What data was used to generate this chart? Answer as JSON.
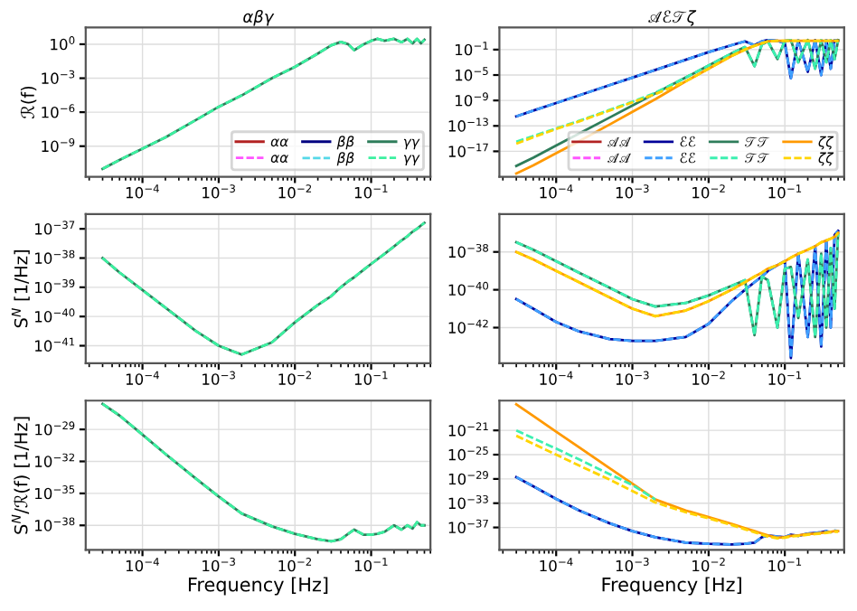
{
  "chart_data": [
    {
      "type": "line",
      "title": "αβγ",
      "ylabel": "ℛ(f)",
      "log": "xy",
      "grid": true,
      "legend": "bottom right",
      "x": [
        3e-05,
        5e-05,
        0.0001,
        0.0002,
        0.0005,
        0.001,
        0.002,
        0.005,
        0.01,
        0.02,
        0.03,
        0.04,
        0.05,
        0.06,
        0.08,
        0.1,
        0.12,
        0.15,
        0.2,
        0.25,
        0.3,
        0.35,
        0.4,
        0.45,
        0.5
      ],
      "xlim": [
        1.8e-05,
        0.6
      ],
      "xticks": [
        {
          "value": 0.0001,
          "label": "10$^{−4}$"
        },
        {
          "value": 0.001,
          "label": "10$^{−3}$"
        },
        {
          "value": 0.01,
          "label": "10$^{−2}$"
        },
        {
          "value": 0.1,
          "label": "10$^{−1}$"
        }
      ],
      "ylim": [
        2e-12,
        30
      ],
      "yticks": [
        {
          "value": 1e-09,
          "label": "10$^{−9}$"
        },
        {
          "value": 1e-06,
          "label": "10$^{−6}$"
        },
        {
          "value": 0.001,
          "label": "10$^{−3}$"
        },
        {
          "value": 1,
          "label": "10$^{0}$"
        }
      ],
      "series": [
        {
          "name": "αα",
          "color": "#b22222",
          "line_style": "solid",
          "values": [
            null,
            null,
            null,
            null,
            null,
            null,
            null,
            null,
            null,
            null,
            null,
            null,
            null,
            null,
            null,
            null,
            null,
            null,
            null,
            null,
            null,
            null,
            null,
            null,
            null
          ]
        },
        {
          "name": "αα",
          "color": "#ff55ff",
          "line_style": "dashed",
          "values": [
            null,
            null,
            null,
            null,
            null,
            null,
            null,
            null,
            null,
            null,
            null,
            null,
            null,
            null,
            null,
            null,
            null,
            null,
            null,
            null,
            null,
            null,
            null,
            null,
            null
          ]
        },
        {
          "name": "ββ",
          "color": "#000080",
          "line_style": "solid",
          "values": [
            null,
            null,
            null,
            null,
            null,
            null,
            null,
            null,
            null,
            null,
            null,
            null,
            null,
            null,
            null,
            null,
            null,
            null,
            null,
            null,
            null,
            null,
            null,
            null,
            null
          ]
        },
        {
          "name": "ββ",
          "color": "#55d8e8",
          "line_style": "dashed",
          "values": [
            null,
            null,
            null,
            null,
            null,
            null,
            null,
            null,
            null,
            null,
            null,
            null,
            null,
            null,
            null,
            null,
            null,
            null,
            null,
            null,
            null,
            null,
            null,
            null,
            null
          ]
        },
        {
          "name": "γγ",
          "color": "#2e7d5b",
          "line_style": "solid",
          "values": [
            1e-11,
            6e-11,
            6e-10,
            6e-09,
            2e-07,
            3e-06,
            3e-05,
            0.001,
            0.01,
            0.15,
            0.8,
            1.6,
            1,
            0.3,
            1,
            2,
            3,
            2,
            3,
            1.5,
            3,
            1.2,
            3,
            1.2,
            2.5
          ]
        },
        {
          "name": "γγ",
          "color": "#3cf0a0",
          "line_style": "dashed",
          "values": [
            1e-11,
            6e-11,
            6e-10,
            6e-09,
            2e-07,
            3e-06,
            3e-05,
            0.001,
            0.01,
            0.15,
            0.8,
            1.6,
            1,
            0.3,
            1,
            2,
            3,
            2,
            3,
            1.5,
            3,
            1.2,
            3,
            1.2,
            2.5
          ]
        }
      ]
    },
    {
      "type": "line",
      "title": "𝒜ℰ𝒯ζ",
      "log": "xy",
      "grid": true,
      "legend": "bottom right",
      "x": [
        3e-05,
        5e-05,
        0.0001,
        0.0002,
        0.0005,
        0.001,
        0.002,
        0.005,
        0.01,
        0.02,
        0.03,
        0.04,
        0.05,
        0.06,
        0.08,
        0.1,
        0.12,
        0.15,
        0.2,
        0.25,
        0.3,
        0.35,
        0.4,
        0.45,
        0.5
      ],
      "xlim": [
        1.8e-05,
        0.6
      ],
      "xticks": [
        {
          "value": 0.0001,
          "label": "10$^{−4}$"
        },
        {
          "value": 0.001,
          "label": "10$^{−3}$"
        },
        {
          "value": 0.01,
          "label": "10$^{−2}$"
        },
        {
          "value": 0.1,
          "label": "10$^{−1}$"
        }
      ],
      "ylim": [
        1e-21,
        300
      ],
      "yticks": [
        {
          "value": 1e-17,
          "label": "10$^{−17}$"
        },
        {
          "value": 1e-13,
          "label": "10$^{−13}$"
        },
        {
          "value": 1e-09,
          "label": "10$^{−9}$"
        },
        {
          "value": 1e-05,
          "label": "10$^{−5}$"
        },
        {
          "value": 0.1,
          "label": "10$^{−1}$"
        }
      ],
      "series": [
        {
          "name": "𝒜𝒜",
          "color": "#b22222",
          "line_style": "solid",
          "values": [
            null,
            null,
            null,
            null,
            null,
            null,
            null,
            null,
            null,
            null,
            null,
            null,
            null,
            null,
            null,
            null,
            null,
            null,
            null,
            null,
            null,
            null,
            null,
            null,
            null
          ]
        },
        {
          "name": "𝒜𝒜",
          "color": "#ff55ff",
          "line_style": "dashed",
          "values": [
            null,
            null,
            null,
            null,
            null,
            null,
            null,
            null,
            null,
            null,
            null,
            null,
            null,
            null,
            null,
            null,
            null,
            null,
            null,
            null,
            null,
            null,
            null,
            null,
            null
          ]
        },
        {
          "name": "ℰℰ",
          "color": "#000099",
          "line_style": "solid",
          "values": [
            3.2e-12,
            2.5e-11,
            4e-10,
            6.3e-09,
            2.5e-07,
            4e-06,
            6.3e-05,
            0.0025,
            0.04,
            0.5,
            2,
            0.5,
            2,
            3.2,
            2.5,
            1,
            3.2e-06,
            3.2,
            3.2e-05,
            3.2,
            1e-05,
            3.2,
            0.0001,
            3.2,
            2.5
          ]
        },
        {
          "name": "ℰℰ",
          "color": "#3fa0ff",
          "line_style": "dashed",
          "values": [
            3.2e-12,
            2.5e-11,
            4e-10,
            6.3e-09,
            2.5e-07,
            4e-06,
            6.3e-05,
            0.0025,
            0.04,
            0.5,
            2,
            0.5,
            2,
            3.2,
            2.5,
            1,
            3.2e-06,
            3.2,
            3.2e-05,
            3.2,
            1e-05,
            3.2,
            0.0001,
            3.2,
            2.5
          ]
        },
        {
          "name": "𝒯𝒯",
          "color": "#2e7d5b",
          "line_style": "solid",
          "values": [
            5e-20,
            1e-18,
            8e-17,
            6.3e-15,
            2e-12,
            1.6e-10,
            1.3e-08,
            4e-06,
            0.00032,
            0.025,
            0.25,
            0.00025,
            0.63,
            2,
            0.0032,
            2.5,
            3.2,
            0.001,
            3.2,
            0.0001,
            3.2,
            0.001,
            3.2,
            0.0032,
            3.2
          ]
        },
        {
          "name": "𝒯𝒯",
          "color": "#3cf0b0",
          "line_style": "dashed",
          "values": [
            3.2e-16,
            2.5e-15,
            4e-14,
            6.3e-13,
            3.2e-11,
            6.3e-10,
            1.6e-08,
            4e-06,
            0.00032,
            0.025,
            0.25,
            0.00025,
            0.63,
            2,
            0.0032,
            2.5,
            3.2,
            0.001,
            3.2,
            0.0001,
            3.2,
            0.001,
            3.2,
            0.0032,
            3.2
          ]
        },
        {
          "name": "ζζ",
          "color": "#ff9900",
          "line_style": "solid",
          "values": [
            3.2e-21,
            6.3e-20,
            5e-18,
            4e-16,
            1.6e-13,
            1.6e-11,
            1.6e-09,
            1e-06,
            0.0001,
            0.01,
            0.1,
            0.4,
            1,
            2,
            2.5,
            2.5,
            2.5,
            2.5,
            2.5,
            2.5,
            2.5,
            2.5,
            2.5,
            2.5,
            2.5
          ]
        },
        {
          "name": "ζζ",
          "color": "#ffd400",
          "line_style": "dashed",
          "values": [
            1.6e-16,
            1.6e-15,
            3.2e-14,
            5e-13,
            2.5e-11,
            5e-10,
            1e-08,
            1e-06,
            0.0001,
            0.01,
            0.1,
            0.4,
            1,
            2,
            2.5,
            2.5,
            2.5,
            2.5,
            2.5,
            2.5,
            2.5,
            2.5,
            2.5,
            2.5,
            2.5
          ]
        }
      ]
    },
    {
      "type": "line",
      "ylabel": "S$^{N}$ [1/Hz]",
      "log": "xy",
      "grid": true,
      "x": [
        3e-05,
        5e-05,
        0.0001,
        0.0002,
        0.0005,
        0.001,
        0.002,
        0.005,
        0.01,
        0.02,
        0.03,
        0.04,
        0.05,
        0.06,
        0.08,
        0.1,
        0.12,
        0.15,
        0.2,
        0.25,
        0.3,
        0.35,
        0.4,
        0.45,
        0.5
      ],
      "xlim": [
        1.8e-05,
        0.6
      ],
      "xticks": [
        {
          "value": 0.0001,
          "label": "10$^{−4}$"
        },
        {
          "value": 0.001,
          "label": "10$^{−3}$"
        },
        {
          "value": 0.01,
          "label": "10$^{−2}$"
        },
        {
          "value": 0.1,
          "label": "10$^{−1}$"
        }
      ],
      "ylim": [
        2.5e-42,
        3.2e-37
      ],
      "yticks": [
        {
          "value": 1e-41,
          "label": "10$^{−41}$"
        },
        {
          "value": 1e-40,
          "label": "10$^{−40}$"
        },
        {
          "value": 1e-39,
          "label": "10$^{−39}$"
        },
        {
          "value": 1e-38,
          "label": "10$^{−38}$"
        },
        {
          "value": 1e-37,
          "label": "10$^{−37}$"
        }
      ],
      "series": [
        {
          "color": "#2e7d5b",
          "line_style": "solid",
          "values": [
            1e-38,
            3.2e-39,
            8e-40,
            2e-40,
            3.2e-41,
            1e-41,
            5e-42,
            1.3e-41,
            6.3e-41,
            2.5e-40,
            5e-40,
            1e-39,
            1.6e-39,
            2.2e-39,
            4e-39,
            6.3e-39,
            9e-39,
            1.4e-38,
            2.5e-38,
            4e-38,
            5.6e-38,
            8e-38,
            1e-37,
            1.3e-37,
            1.6e-37
          ]
        },
        {
          "color": "#3cf0a0",
          "line_style": "dashed",
          "values": [
            1e-38,
            3.2e-39,
            8e-40,
            2e-40,
            3.2e-41,
            1e-41,
            5e-42,
            1.3e-41,
            6.3e-41,
            2.5e-40,
            5e-40,
            1e-39,
            1.6e-39,
            2.2e-39,
            4e-39,
            6.3e-39,
            9e-39,
            1.4e-38,
            2.5e-38,
            4e-38,
            5.6e-38,
            8e-38,
            1e-37,
            1.3e-37,
            1.6e-37
          ]
        }
      ]
    },
    {
      "type": "line",
      "log": "xy",
      "grid": true,
      "x": [
        3e-05,
        5e-05,
        0.0001,
        0.0002,
        0.0005,
        0.001,
        0.002,
        0.005,
        0.01,
        0.02,
        0.03,
        0.04,
        0.05,
        0.06,
        0.08,
        0.1,
        0.12,
        0.15,
        0.2,
        0.25,
        0.3,
        0.35,
        0.4,
        0.45,
        0.5
      ],
      "xlim": [
        1.8e-05,
        0.6
      ],
      "xticks": [
        {
          "value": 0.0001,
          "label": "10$^{−4}$"
        },
        {
          "value": 0.001,
          "label": "10$^{−3}$"
        },
        {
          "value": 0.01,
          "label": "10$^{−2}$"
        },
        {
          "value": 0.1,
          "label": "10$^{−1}$"
        }
      ],
      "ylim": [
        1.3e-44,
        1e-36
      ],
      "yticks": [
        {
          "value": 1e-42,
          "label": "10$^{−42}$"
        },
        {
          "value": 1e-40,
          "label": "10$^{−40}$"
        },
        {
          "value": 1e-38,
          "label": "10$^{−38}$"
        }
      ],
      "series": [
        {
          "color": "#000099",
          "line_style": "solid",
          "values": [
            3.2e-41,
            1e-41,
            2e-42,
            6.3e-43,
            2.5e-43,
            2e-43,
            2e-43,
            3.2e-43,
            1.6e-42,
            2.5e-41,
            1e-40,
            2.5e-40,
            5e-40,
            1e-39,
            2e-39,
            3.2e-39,
            2.5e-44,
            8e-39,
            3.2e-43,
            2e-38,
            1e-43,
            4e-38,
            1e-42,
            8e-38,
            1.3e-37
          ]
        },
        {
          "color": "#3fa0ff",
          "line_style": "dashed",
          "values": [
            3.2e-41,
            1e-41,
            2e-42,
            6.3e-43,
            2.5e-43,
            2e-43,
            2e-43,
            3.2e-43,
            1.6e-42,
            2.5e-41,
            1e-40,
            2.5e-40,
            5e-40,
            1e-39,
            2e-39,
            3.2e-39,
            2.5e-44,
            8e-39,
            3.2e-43,
            2e-38,
            1e-43,
            4e-38,
            1e-42,
            8e-38,
            1.3e-37
          ]
        },
        {
          "color": "#2e7d5b",
          "line_style": "solid",
          "values": [
            3.2e-38,
            1.3e-38,
            3.2e-39,
            8e-40,
            1.3e-40,
            3.2e-41,
            1.3e-41,
            2e-41,
            5e-41,
            1.6e-40,
            3.2e-40,
            4e-43,
            5e-40,
            3.2e-40,
            1e-42,
            1.3e-39,
            1.6e-39,
            3.2e-42,
            4e-39,
            3.2e-43,
            8e-39,
            1e-42,
            1.6e-38,
            1e-41,
            1e-37
          ]
        },
        {
          "color": "#3cf0b0",
          "line_style": "dashed",
          "values": [
            3.2e-38,
            1.3e-38,
            3.2e-39,
            8e-40,
            1.3e-40,
            3.2e-41,
            1.3e-41,
            2e-41,
            5e-41,
            1.6e-40,
            3.2e-40,
            4e-43,
            5e-40,
            3.2e-40,
            1e-42,
            1.3e-39,
            1.6e-39,
            3.2e-42,
            4e-39,
            3.2e-43,
            8e-39,
            1e-42,
            1.6e-38,
            1e-41,
            1e-37
          ]
        },
        {
          "color": "#ff9900",
          "line_style": "solid",
          "values": [
            1e-38,
            4e-39,
            1e-39,
            2.5e-40,
            4e-41,
            1e-41,
            4e-42,
            8e-42,
            2.5e-41,
            1e-40,
            2.5e-40,
            5e-40,
            8e-40,
            1.3e-39,
            2e-39,
            3.2e-39,
            5e-39,
            8e-39,
            1.3e-38,
            2e-38,
            3.2e-38,
            4e-38,
            5e-38,
            6.3e-38,
            1e-37
          ]
        },
        {
          "color": "#ffd400",
          "line_style": "dashed",
          "values": [
            1e-38,
            4e-39,
            1e-39,
            2.5e-40,
            4e-41,
            1e-41,
            4e-42,
            8e-42,
            2.5e-41,
            1e-40,
            2.5e-40,
            5e-40,
            8e-40,
            1.3e-39,
            2e-39,
            3.2e-39,
            5e-39,
            8e-39,
            1.3e-38,
            2e-38,
            3.2e-38,
            4e-38,
            5e-38,
            6.3e-38,
            1e-37
          ]
        }
      ]
    },
    {
      "type": "line",
      "xlabel": "Frequency [Hz]",
      "ylabel": "S$^{N}$/ℛ(f) [1/Hz]",
      "log": "xy",
      "grid": true,
      "x": [
        3e-05,
        5e-05,
        0.0001,
        0.0002,
        0.0005,
        0.001,
        0.002,
        0.005,
        0.01,
        0.02,
        0.03,
        0.04,
        0.05,
        0.06,
        0.08,
        0.1,
        0.12,
        0.15,
        0.2,
        0.25,
        0.3,
        0.35,
        0.4,
        0.45,
        0.5
      ],
      "xlim": [
        1.8e-05,
        0.6
      ],
      "xticks": [
        {
          "value": 0.0001,
          "label": "10$^{−4}$"
        },
        {
          "value": 0.001,
          "label": "10$^{−3}$"
        },
        {
          "value": 0.01,
          "label": "10$^{−2}$"
        },
        {
          "value": 0.1,
          "label": "10$^{−1}$"
        }
      ],
      "ylim": [
        5e-41,
        5e-27
      ],
      "yticks": [
        {
          "value": 1e-38,
          "label": "10$^{−38}$"
        },
        {
          "value": 1e-35,
          "label": "10$^{−35}$"
        },
        {
          "value": 1e-32,
          "label": "10$^{−32}$"
        },
        {
          "value": 1e-29,
          "label": "10$^{−29}$"
        }
      ],
      "series": [
        {
          "color": "#2e7d5b",
          "line_style": "solid",
          "values": [
            2.5e-27,
            2e-28,
            3.2e-30,
            5e-32,
            2.5e-34,
            5e-36,
            1.3e-37,
            8e-39,
            1.6e-39,
            5e-40,
            3.2e-40,
            5e-40,
            1.6e-39,
            4e-39,
            1.3e-39,
            1.3e-39,
            1.6e-39,
            2.5e-39,
            1e-38,
            4e-39,
            1e-38,
            5e-39,
            2e-38,
            1e-38,
            1e-38
          ]
        },
        {
          "color": "#3cf0a0",
          "line_style": "dashed",
          "values": [
            2.5e-27,
            2e-28,
            3.2e-30,
            5e-32,
            2.5e-34,
            5e-36,
            1.3e-37,
            8e-39,
            1.6e-39,
            5e-40,
            3.2e-40,
            5e-40,
            1.6e-39,
            4e-39,
            1.3e-39,
            1.3e-39,
            1.6e-39,
            2.5e-39,
            1e-38,
            4e-39,
            1e-38,
            5e-39,
            2e-38,
            1e-38,
            1e-38
          ]
        }
      ]
    },
    {
      "type": "line",
      "xlabel": "Frequency [Hz]",
      "log": "xy",
      "grid": true,
      "x": [
        3e-05,
        5e-05,
        0.0001,
        0.0002,
        0.0005,
        0.001,
        0.002,
        0.005,
        0.01,
        0.02,
        0.03,
        0.04,
        0.05,
        0.06,
        0.08,
        0.1,
        0.12,
        0.15,
        0.2,
        0.25,
        0.3,
        0.35,
        0.4,
        0.45,
        0.5
      ],
      "xlim": [
        1.8e-05,
        0.6
      ],
      "xticks": [
        {
          "value": 0.0001,
          "label": "10$^{−4}$"
        },
        {
          "value": 0.001,
          "label": "10$^{−3}$"
        },
        {
          "value": 0.01,
          "label": "10$^{−2}$"
        },
        {
          "value": 0.1,
          "label": "10$^{−1}$"
        }
      ],
      "ylim": [
        2e-41,
        8e-17
      ],
      "yticks": [
        {
          "value": 1e-37,
          "label": "10$^{−37}$"
        },
        {
          "value": 1e-33,
          "label": "10$^{−33}$"
        },
        {
          "value": 1e-29,
          "label": "10$^{−29}$"
        },
        {
          "value": 1e-25,
          "label": "10$^{−25}$"
        },
        {
          "value": 1e-21,
          "label": "10$^{−21}$"
        }
      ],
      "series": [
        {
          "color": "#000099",
          "line_style": "solid",
          "values": [
            2e-29,
            6.3e-31,
            5e-33,
            6.3e-35,
            5e-37,
            2.5e-38,
            2.5e-39,
            3.2e-40,
            2e-40,
            1.6e-40,
            2e-40,
            3.2e-40,
            2.5e-39,
            5e-39,
            3.2e-39,
            2.5e-39,
            6.3e-39,
            4e-39,
            1e-38,
            1.3e-38,
            1.6e-38,
            2.5e-38,
            null,
            null,
            null
          ]
        },
        {
          "color": "#3fa0ff",
          "line_style": "dashed",
          "values": [
            2e-29,
            6.3e-31,
            5e-33,
            6.3e-35,
            5e-37,
            2.5e-38,
            2.5e-39,
            3.2e-40,
            2e-40,
            1.6e-40,
            2e-40,
            3.2e-40,
            2.5e-39,
            5e-39,
            3.2e-39,
            2.5e-39,
            6.3e-39,
            4e-39,
            1e-38,
            1.3e-38,
            1.6e-38,
            2.5e-38,
            1.6e-38,
            3.2e-38,
            2.5e-38
          ]
        },
        {
          "color": "#ff9900",
          "line_style": "solid",
          "values": [
            2e-17,
            2.5e-19,
            6.3e-22,
            1.6e-24,
            6.3e-28,
            1.6e-30,
            4e-33,
            6.3e-35,
            5e-36,
            4e-37,
            8e-38,
            2.5e-38,
            1e-38,
            5e-39,
            2e-39,
            2.5e-39,
            4e-39,
            5e-39,
            8e-39,
            1e-38,
            1.3e-38,
            1.6e-38,
            2e-38,
            2.5e-38,
            2.5e-38
          ]
        },
        {
          "color": "#3cf0b0",
          "line_style": "dashed",
          "values": [
            1e-21,
            5e-23,
            1e-24,
            1.6e-26,
            6.3e-29,
            1e-30,
            4e-33,
            null,
            null,
            null,
            null,
            null,
            null,
            null,
            null,
            null,
            null,
            null,
            null,
            null,
            null,
            null,
            null,
            null,
            null
          ]
        },
        {
          "color": "#ffd400",
          "line_style": "dashed",
          "values": [
            1.3e-22,
            6.3e-24,
            1e-25,
            1.6e-27,
            8e-30,
            1e-31,
            1.3e-33,
            3.2e-35,
            3.2e-36,
            2.5e-37,
            5e-38,
            1.6e-38,
            6.3e-39,
            3.2e-39,
            1.6e-39,
            2e-39,
            3.2e-39,
            4e-39,
            6.3e-39,
            8e-39,
            1e-38,
            1.3e-38,
            1.6e-38,
            2e-38,
            2e-38
          ]
        }
      ]
    }
  ]
}
